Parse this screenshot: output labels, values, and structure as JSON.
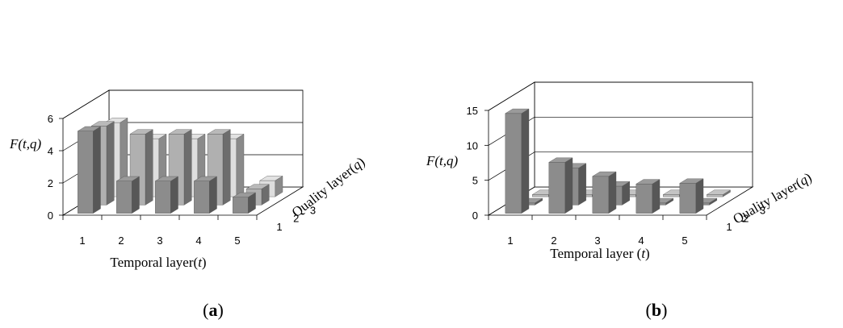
{
  "chart_data": [
    {
      "panel_label": "a",
      "type": "bar3d",
      "ylabel": "F(t,q)",
      "xlabel": "Temporal layer",
      "xlabel_var": "t",
      "zlabel": "Quality layer",
      "zlabel_var": "q",
      "y_ticks": [
        "0",
        "2",
        "4",
        "6"
      ],
      "ylim": [
        0,
        6
      ],
      "x_categories": [
        "1",
        "2",
        "3",
        "4",
        "5"
      ],
      "z_categories": [
        "1",
        "2",
        "3"
      ],
      "grid": true,
      "series": [
        {
          "q": 1,
          "values": [
            5.1,
            2.0,
            2.0,
            2.0,
            1.0
          ]
        },
        {
          "q": 2,
          "values": [
            4.9,
            4.4,
            4.4,
            4.4,
            1.0
          ]
        },
        {
          "q": 3,
          "values": [
            4.6,
            3.6,
            3.6,
            3.6,
            1.0
          ]
        }
      ],
      "colors": {
        "q1": "#8c8c8c",
        "q2": "#b0b0b0",
        "q3": "#dedede"
      }
    },
    {
      "panel_label": "b",
      "type": "bar3d",
      "ylabel": "F(t,q)",
      "xlabel": "Temporal layer",
      "xlabel_var": "t",
      "zlabel": "Quality layer",
      "zlabel_var": "q",
      "y_ticks": [
        "0",
        "5",
        "10",
        "15"
      ],
      "ylim": [
        0,
        15
      ],
      "x_categories": [
        "1",
        "2",
        "3",
        "4",
        "5"
      ],
      "z_categories": [
        "1",
        "2",
        "3"
      ],
      "grid": true,
      "series": [
        {
          "q": 1,
          "values": [
            14.3,
            7.3,
            5.3,
            4.2,
            4.3
          ]
        },
        {
          "q": 2,
          "values": [
            0,
            5.3,
            2.7,
            0,
            0
          ]
        },
        {
          "q": 3,
          "values": [
            0,
            0,
            0,
            0,
            0
          ]
        }
      ],
      "colors": {
        "q1": "#8c8c8c",
        "q2": "#8c8c8c",
        "q3": "#bcbcbc"
      }
    }
  ]
}
